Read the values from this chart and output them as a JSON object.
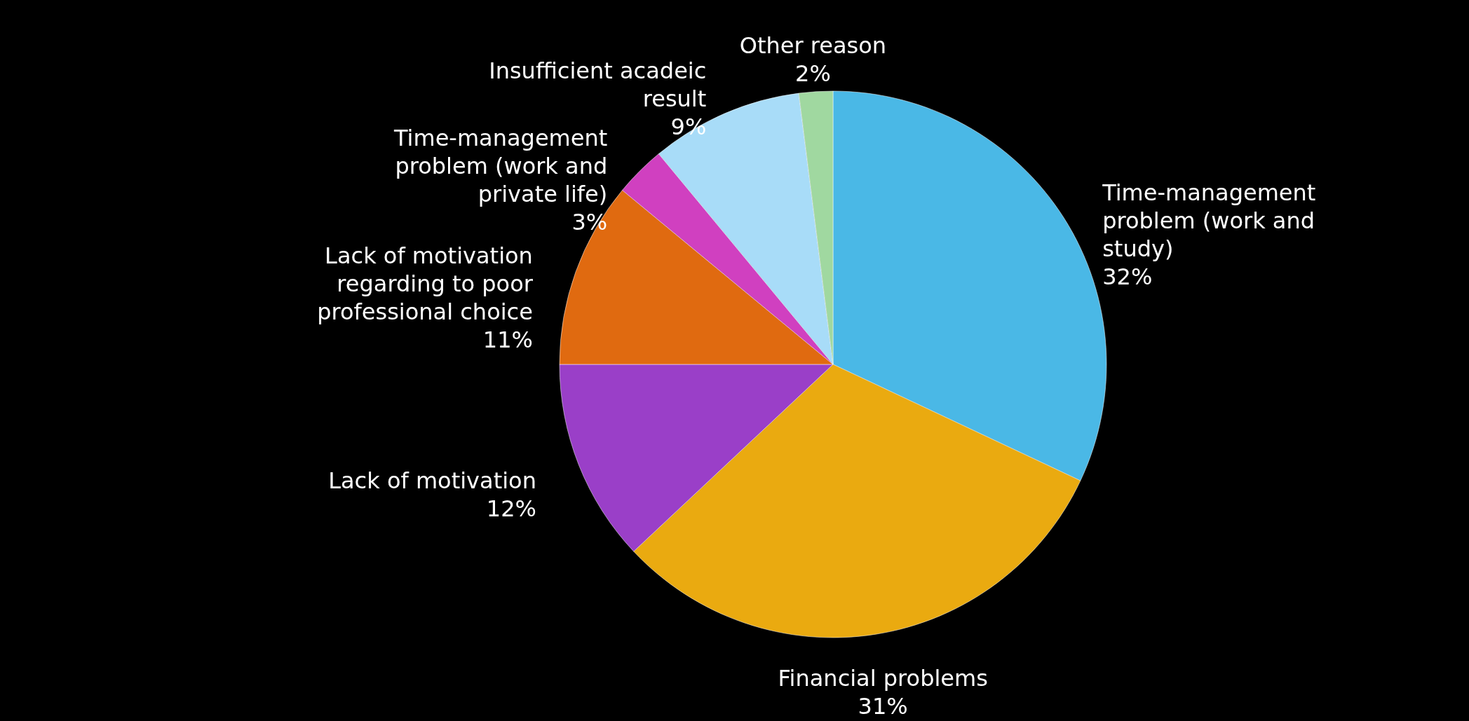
{
  "chart_data": {
    "type": "pie",
    "categories": [
      "Time-management problem (work and study)",
      "Financial problems",
      "Lack of motivation",
      "Lack of motivation regarding to poor professional choice",
      "Time-management problem (work and private life)",
      "Insufficient acadeic result",
      "Other reason"
    ],
    "values": [
      32,
      31,
      12,
      11,
      3,
      9,
      2
    ],
    "colors": [
      "#4ab8e6",
      "#eaaa10",
      "#9a3fc8",
      "#e06a10",
      "#d040c0",
      "#a8dcf8",
      "#a0d8a0"
    ],
    "value_labels": [
      "32%",
      "31%",
      "12%",
      "11%",
      "3%",
      "9%",
      "2%"
    ]
  }
}
